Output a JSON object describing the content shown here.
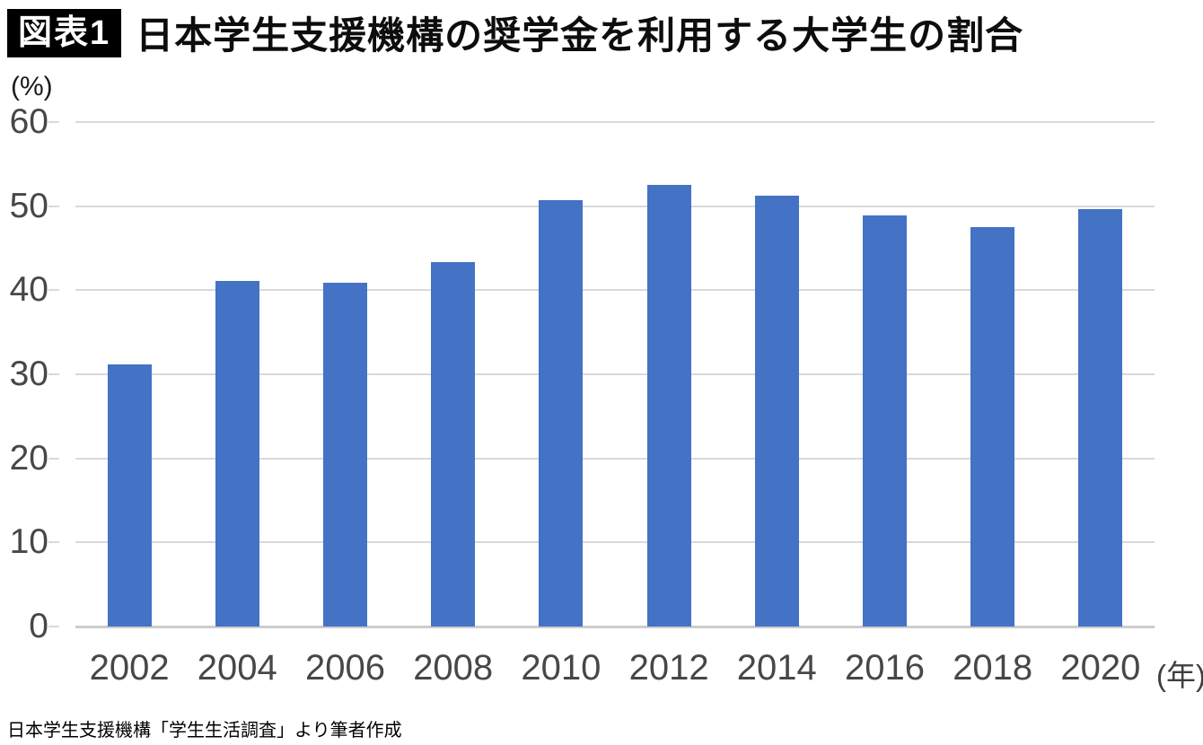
{
  "header": {
    "badge": "図表1",
    "title": "日本学生支援機構の奨学金を利用する大学生の割合"
  },
  "chart_data": {
    "type": "bar",
    "title": "日本学生支援機構の奨学金を利用する大学生の割合",
    "categories": [
      "2002",
      "2004",
      "2006",
      "2008",
      "2010",
      "2012",
      "2014",
      "2016",
      "2018",
      "2020"
    ],
    "values": [
      31.2,
      41.1,
      40.9,
      43.3,
      50.7,
      52.5,
      51.3,
      48.9,
      47.5,
      49.6
    ],
    "xlabel": "(年)",
    "ylabel": "(%)",
    "ylim": [
      0,
      60
    ],
    "yticks": [
      0,
      10,
      20,
      30,
      40,
      50,
      60
    ],
    "grid": true,
    "legend_position": "none",
    "bar_color": "#4472C4",
    "gridline_color": "#D9D9D9",
    "axis_color": "#CCCCCC",
    "tick_label_color": "#474747"
  },
  "footer": {
    "source": "日本学生支援機構「学生生活調査」より筆者作成"
  }
}
